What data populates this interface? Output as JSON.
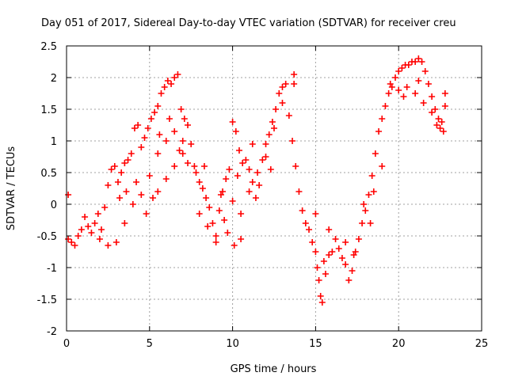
{
  "chart_data": {
    "type": "scatter",
    "title": "Day 051 of 2017, Sidereal Day-to-day VTEC variation (SDTVAR) for receiver creu",
    "xlabel": "GPS time / hours",
    "ylabel": "SDTVAR / TECUs",
    "xlim": [
      0,
      25
    ],
    "ylim": [
      -2,
      2.5
    ],
    "x_ticks": [
      "0",
      "5",
      "10",
      "15",
      "20",
      "25"
    ],
    "y_ticks": [
      "-2",
      "-1.5",
      "-1",
      "-0.5",
      "0",
      "0.5",
      "1",
      "1.5",
      "2",
      "2.5"
    ],
    "grid": true,
    "marker": "+",
    "series": [
      {
        "name": "SDTVAR",
        "color": "#ff0000",
        "points": [
          [
            0.1,
            0.15
          ],
          [
            0.1,
            -0.55
          ],
          [
            0.3,
            -0.6
          ],
          [
            0.5,
            -0.65
          ],
          [
            0.7,
            -0.5
          ],
          [
            0.9,
            -0.4
          ],
          [
            1.1,
            -0.2
          ],
          [
            1.3,
            -0.35
          ],
          [
            1.5,
            -0.45
          ],
          [
            1.7,
            -0.3
          ],
          [
            1.9,
            -0.15
          ],
          [
            2.1,
            -0.4
          ],
          [
            2.3,
            -0.05
          ],
          [
            2.5,
            0.3
          ],
          [
            2.7,
            0.55
          ],
          [
            2.9,
            0.6
          ],
          [
            3.1,
            0.35
          ],
          [
            3.3,
            0.5
          ],
          [
            3.5,
            0.65
          ],
          [
            3.7,
            0.7
          ],
          [
            3.9,
            0.8
          ],
          [
            4.1,
            1.2
          ],
          [
            4.3,
            1.25
          ],
          [
            4.5,
            0.9
          ],
          [
            4.7,
            1.05
          ],
          [
            4.9,
            1.2
          ],
          [
            5.1,
            1.35
          ],
          [
            5.3,
            1.45
          ],
          [
            5.5,
            1.55
          ],
          [
            5.7,
            1.75
          ],
          [
            5.9,
            1.85
          ],
          [
            6.1,
            1.95
          ],
          [
            6.3,
            1.9
          ],
          [
            6.5,
            2.0
          ],
          [
            6.7,
            2.05
          ],
          [
            6.9,
            1.5
          ],
          [
            7.1,
            1.35
          ],
          [
            7.3,
            1.25
          ],
          [
            7.5,
            0.95
          ],
          [
            7.7,
            0.6
          ],
          [
            5.5,
            0.2
          ],
          [
            6.0,
            0.4
          ],
          [
            6.5,
            0.6
          ],
          [
            7.0,
            0.8
          ],
          [
            7.3,
            0.65
          ],
          [
            2.0,
            -0.55
          ],
          [
            2.5,
            -0.65
          ],
          [
            3.0,
            -0.6
          ],
          [
            3.5,
            -0.3
          ],
          [
            4.0,
            0.0
          ],
          [
            4.5,
            0.15
          ],
          [
            5.0,
            0.45
          ],
          [
            5.5,
            0.8
          ],
          [
            6.0,
            1.0
          ],
          [
            6.5,
            1.15
          ],
          [
            7.0,
            1.0
          ],
          [
            3.2,
            0.1
          ],
          [
            3.6,
            0.2
          ],
          [
            4.2,
            0.35
          ],
          [
            4.8,
            -0.15
          ],
          [
            5.2,
            0.1
          ],
          [
            5.6,
            1.1
          ],
          [
            6.2,
            1.35
          ],
          [
            6.8,
            0.85
          ],
          [
            7.8,
            0.5
          ],
          [
            8.0,
            0.35
          ],
          [
            8.2,
            0.25
          ],
          [
            8.4,
            0.1
          ],
          [
            8.6,
            -0.05
          ],
          [
            8.8,
            -0.3
          ],
          [
            9.0,
            -0.5
          ],
          [
            9.2,
            -0.1
          ],
          [
            9.4,
            0.2
          ],
          [
            9.6,
            0.4
          ],
          [
            9.8,
            0.55
          ],
          [
            10.0,
            1.3
          ],
          [
            10.2,
            1.15
          ],
          [
            10.4,
            0.85
          ],
          [
            10.6,
            0.65
          ],
          [
            10.8,
            0.7
          ],
          [
            11.0,
            0.55
          ],
          [
            11.2,
            0.35
          ],
          [
            11.4,
            0.1
          ],
          [
            11.6,
            0.3
          ],
          [
            11.8,
            0.7
          ],
          [
            12.0,
            0.95
          ],
          [
            12.2,
            1.1
          ],
          [
            12.4,
            1.3
          ],
          [
            12.6,
            1.5
          ],
          [
            12.8,
            1.75
          ],
          [
            13.0,
            1.85
          ],
          [
            13.2,
            1.9
          ],
          [
            13.4,
            1.4
          ],
          [
            13.6,
            1.0
          ],
          [
            13.8,
            0.6
          ],
          [
            14.0,
            0.2
          ],
          [
            14.2,
            -0.1
          ],
          [
            8.5,
            -0.35
          ],
          [
            9.0,
            -0.6
          ],
          [
            9.5,
            -0.25
          ],
          [
            10.0,
            0.05
          ],
          [
            10.5,
            -0.15
          ],
          [
            11.0,
            0.2
          ],
          [
            11.5,
            0.5
          ],
          [
            12.0,
            0.75
          ],
          [
            12.5,
            1.2
          ],
          [
            13.0,
            1.6
          ],
          [
            9.3,
            0.15
          ],
          [
            9.7,
            -0.45
          ],
          [
            10.1,
            -0.65
          ],
          [
            10.5,
            -0.55
          ],
          [
            11.2,
            0.95
          ],
          [
            10.3,
            0.45
          ],
          [
            12.3,
            0.55
          ],
          [
            13.7,
            2.05
          ],
          [
            13.7,
            1.9
          ],
          [
            8.0,
            -0.15
          ],
          [
            8.3,
            0.6
          ],
          [
            14.4,
            -0.3
          ],
          [
            14.6,
            -0.4
          ],
          [
            14.8,
            -0.6
          ],
          [
            15.0,
            -0.75
          ],
          [
            15.1,
            -1.0
          ],
          [
            15.2,
            -1.2
          ],
          [
            15.3,
            -1.45
          ],
          [
            15.4,
            -1.55
          ],
          [
            15.5,
            -0.9
          ],
          [
            15.6,
            -1.1
          ],
          [
            15.8,
            -0.8
          ],
          [
            16.0,
            -0.75
          ],
          [
            16.2,
            -0.55
          ],
          [
            16.4,
            -0.7
          ],
          [
            16.6,
            -0.85
          ],
          [
            16.8,
            -0.95
          ],
          [
            17.0,
            -1.2
          ],
          [
            17.2,
            -1.05
          ],
          [
            17.4,
            -0.75
          ],
          [
            17.6,
            -0.55
          ],
          [
            17.8,
            -0.3
          ],
          [
            18.0,
            -0.1
          ],
          [
            18.2,
            0.15
          ],
          [
            18.4,
            0.45
          ],
          [
            18.6,
            0.8
          ],
          [
            18.8,
            1.15
          ],
          [
            19.0,
            1.35
          ],
          [
            19.2,
            1.55
          ],
          [
            19.4,
            1.75
          ],
          [
            19.6,
            1.85
          ],
          [
            19.8,
            2.0
          ],
          [
            20.0,
            2.1
          ],
          [
            20.2,
            2.15
          ],
          [
            20.4,
            2.2
          ],
          [
            20.6,
            2.2
          ],
          [
            20.8,
            2.25
          ],
          [
            21.0,
            2.25
          ],
          [
            21.2,
            2.3
          ],
          [
            21.4,
            2.25
          ],
          [
            21.6,
            2.1
          ],
          [
            21.8,
            1.9
          ],
          [
            22.0,
            1.7
          ],
          [
            22.2,
            1.5
          ],
          [
            22.4,
            1.35
          ],
          [
            22.6,
            1.3
          ],
          [
            22.8,
            1.55
          ],
          [
            22.8,
            1.75
          ],
          [
            22.7,
            1.15
          ],
          [
            19.5,
            1.9
          ],
          [
            20.0,
            1.8
          ],
          [
            20.5,
            1.85
          ],
          [
            21.0,
            1.75
          ],
          [
            21.5,
            1.6
          ],
          [
            22.0,
            1.45
          ],
          [
            22.5,
            1.2
          ],
          [
            20.3,
            1.7
          ],
          [
            21.2,
            1.95
          ],
          [
            22.3,
            1.25
          ],
          [
            17.3,
            -0.8
          ],
          [
            16.8,
            -0.6
          ],
          [
            15.8,
            -0.4
          ],
          [
            15.0,
            -0.15
          ],
          [
            18.5,
            0.2
          ],
          [
            19.0,
            0.6
          ],
          [
            17.9,
            0.0
          ],
          [
            18.3,
            -0.3
          ]
        ]
      }
    ]
  }
}
